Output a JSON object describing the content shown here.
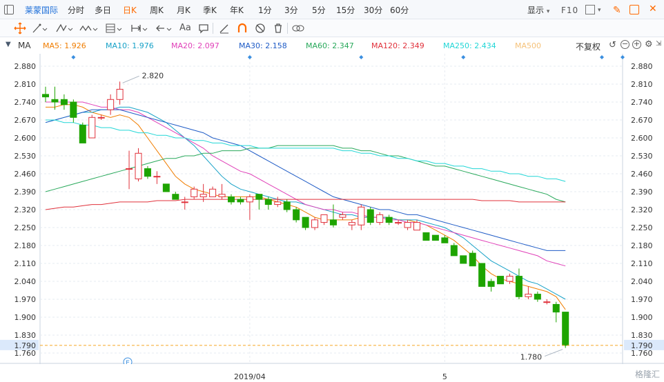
{
  "topbar": {
    "stock_name": "莱蒙国际",
    "periods": [
      "分时",
      "多日",
      "日K",
      "周K",
      "月K",
      "季K",
      "年K",
      "1分",
      "3分",
      "5分",
      "15分",
      "30分",
      "60分"
    ],
    "active_period": "日K",
    "display_label": "显示",
    "f10_label": "F10"
  },
  "indicator_bar": {
    "label": "MA",
    "fq_label": "不复权",
    "ma": [
      {
        "name": "MA5",
        "value": "1.926",
        "color": "#f07d00"
      },
      {
        "name": "MA10",
        "value": "1.976",
        "color": "#16a1c7"
      },
      {
        "name": "MA20",
        "value": "2.097",
        "color": "#e040b8"
      },
      {
        "name": "MA30",
        "value": "2.158",
        "color": "#1e5bc6"
      },
      {
        "name": "MA60",
        "value": "2.347",
        "color": "#27a85a"
      },
      {
        "name": "MA120",
        "value": "2.349",
        "color": "#e0303a"
      },
      {
        "name": "MA250",
        "value": "2.434",
        "color": "#20d6d6"
      },
      {
        "name": "MA500",
        "value": "",
        "color": "#f5c27a"
      }
    ]
  },
  "chart_data": {
    "type": "candlestick",
    "y_ticks": [
      "2.880",
      "2.810",
      "2.740",
      "2.670",
      "2.600",
      "2.530",
      "2.460",
      "2.390",
      "2.320",
      "2.250",
      "2.180",
      "2.110",
      "2.040",
      "1.970",
      "1.900",
      "1.830",
      "1.790",
      "1.760"
    ],
    "ylim": [
      1.76,
      2.88
    ],
    "x_labels": [
      {
        "text": "2019/04",
        "index": 22
      },
      {
        "text": "5",
        "index": 43
      }
    ],
    "annotations": {
      "high": "2.820",
      "low": "1.780",
      "current_price": "1.790"
    },
    "colors": {
      "up": "#e0303a",
      "down": "#1ea400",
      "current_line": "#f5a623"
    },
    "candles": [
      {
        "o": 2.77,
        "c": 2.76,
        "h": 2.8,
        "l": 2.74
      },
      {
        "o": 2.75,
        "c": 2.74,
        "h": 2.8,
        "l": 2.71
      },
      {
        "o": 2.75,
        "c": 2.73,
        "h": 2.77,
        "l": 2.71
      },
      {
        "o": 2.74,
        "c": 2.68,
        "h": 2.75,
        "l": 2.66
      },
      {
        "o": 2.65,
        "c": 2.58,
        "h": 2.66,
        "l": 2.58
      },
      {
        "o": 2.6,
        "c": 2.68,
        "h": 2.69,
        "l": 2.6
      },
      {
        "o": 2.68,
        "c": 2.68,
        "h": 2.69,
        "l": 2.67
      },
      {
        "o": 2.71,
        "c": 2.75,
        "h": 2.77,
        "l": 2.69
      },
      {
        "o": 2.75,
        "c": 2.79,
        "h": 2.82,
        "l": 2.73
      },
      {
        "o": 2.48,
        "c": 2.48,
        "h": 2.55,
        "l": 2.4
      },
      {
        "o": 2.44,
        "c": 2.54,
        "h": 2.56,
        "l": 2.43
      },
      {
        "o": 2.48,
        "c": 2.45,
        "h": 2.49,
        "l": 2.44
      },
      {
        "o": 2.45,
        "c": 2.45,
        "h": 2.47,
        "l": 2.42
      },
      {
        "o": 2.42,
        "c": 2.39,
        "h": 2.42,
        "l": 2.39
      },
      {
        "o": 2.38,
        "c": 2.36,
        "h": 2.39,
        "l": 2.36
      },
      {
        "o": 2.35,
        "c": 2.35,
        "h": 2.37,
        "l": 2.32
      },
      {
        "o": 2.37,
        "c": 2.4,
        "h": 2.41,
        "l": 2.36
      },
      {
        "o": 2.37,
        "c": 2.38,
        "h": 2.42,
        "l": 2.35
      },
      {
        "o": 2.37,
        "c": 2.4,
        "h": 2.41,
        "l": 2.37
      },
      {
        "o": 2.37,
        "c": 2.38,
        "h": 2.42,
        "l": 2.36
      },
      {
        "o": 2.37,
        "c": 2.35,
        "h": 2.38,
        "l": 2.34
      },
      {
        "o": 2.36,
        "c": 2.35,
        "h": 2.37,
        "l": 2.34
      },
      {
        "o": 2.35,
        "c": 2.37,
        "h": 2.38,
        "l": 2.28
      },
      {
        "o": 2.38,
        "c": 2.36,
        "h": 2.38,
        "l": 2.32
      },
      {
        "o": 2.36,
        "c": 2.34,
        "h": 2.37,
        "l": 2.32
      },
      {
        "o": 2.34,
        "c": 2.35,
        "h": 2.37,
        "l": 2.33
      },
      {
        "o": 2.35,
        "c": 2.32,
        "h": 2.36,
        "l": 2.31
      },
      {
        "o": 2.32,
        "c": 2.28,
        "h": 2.33,
        "l": 2.27
      },
      {
        "o": 2.29,
        "c": 2.25,
        "h": 2.29,
        "l": 2.24
      },
      {
        "o": 2.25,
        "c": 2.28,
        "h": 2.29,
        "l": 2.24
      },
      {
        "o": 2.27,
        "c": 2.3,
        "h": 2.3,
        "l": 2.26
      },
      {
        "o": 2.28,
        "c": 2.26,
        "h": 2.34,
        "l": 2.25
      },
      {
        "o": 2.29,
        "c": 2.3,
        "h": 2.31,
        "l": 2.28
      },
      {
        "o": 2.26,
        "c": 2.27,
        "h": 2.28,
        "l": 2.24
      },
      {
        "o": 2.26,
        "c": 2.33,
        "h": 2.34,
        "l": 2.24
      },
      {
        "o": 2.32,
        "c": 2.27,
        "h": 2.33,
        "l": 2.26
      },
      {
        "o": 2.27,
        "c": 2.3,
        "h": 2.31,
        "l": 2.26
      },
      {
        "o": 2.29,
        "c": 2.27,
        "h": 2.3,
        "l": 2.26
      },
      {
        "o": 2.27,
        "c": 2.27,
        "h": 2.28,
        "l": 2.26
      },
      {
        "o": 2.25,
        "c": 2.27,
        "h": 2.28,
        "l": 2.24
      },
      {
        "o": 2.24,
        "c": 2.27,
        "h": 2.28,
        "l": 2.24
      },
      {
        "o": 2.23,
        "c": 2.2,
        "h": 2.23,
        "l": 2.2
      },
      {
        "o": 2.22,
        "c": 2.2,
        "h": 2.22,
        "l": 2.2
      },
      {
        "o": 2.21,
        "c": 2.19,
        "h": 2.22,
        "l": 2.19
      },
      {
        "o": 2.18,
        "c": 2.14,
        "h": 2.19,
        "l": 2.14
      },
      {
        "o": 2.14,
        "c": 2.11,
        "h": 2.14,
        "l": 2.11
      },
      {
        "o": 2.15,
        "c": 2.1,
        "h": 2.16,
        "l": 2.1
      },
      {
        "o": 2.11,
        "c": 2.02,
        "h": 2.11,
        "l": 2.02
      },
      {
        "o": 2.04,
        "c": 2.02,
        "h": 2.05,
        "l": 2.0
      },
      {
        "o": 2.06,
        "c": 2.03,
        "h": 2.06,
        "l": 2.03
      },
      {
        "o": 2.04,
        "c": 2.06,
        "h": 2.07,
        "l": 2.03
      },
      {
        "o": 2.06,
        "c": 1.98,
        "h": 2.09,
        "l": 1.97
      },
      {
        "o": 1.98,
        "c": 1.99,
        "h": 2.02,
        "l": 1.97
      },
      {
        "o": 1.99,
        "c": 1.97,
        "h": 2.0,
        "l": 1.96
      },
      {
        "o": 1.96,
        "c": 1.96,
        "h": 1.97,
        "l": 1.95
      },
      {
        "o": 1.95,
        "c": 1.92,
        "h": 1.96,
        "l": 1.88
      },
      {
        "o": 1.92,
        "c": 1.79,
        "h": 1.92,
        "l": 1.78
      }
    ],
    "ma_lines": {
      "MA5": [
        2.72,
        2.72,
        2.73,
        2.73,
        2.72,
        2.7,
        2.69,
        2.68,
        2.69,
        2.68,
        2.65,
        2.6,
        2.55,
        2.5,
        2.45,
        2.42,
        2.4,
        2.39,
        2.38,
        2.37,
        2.37,
        2.37,
        2.37,
        2.37,
        2.36,
        2.35,
        2.34,
        2.33,
        2.31,
        2.29,
        2.28,
        2.28,
        2.28,
        2.28,
        2.29,
        2.29,
        2.29,
        2.29,
        2.28,
        2.28,
        2.27,
        2.26,
        2.24,
        2.22,
        2.2,
        2.17,
        2.14,
        2.1,
        2.07,
        2.05,
        2.04,
        2.03,
        2.02,
        2.01,
        2.0,
        1.98,
        1.93
      ],
      "MA10": [
        2.66,
        2.67,
        2.68,
        2.69,
        2.7,
        2.7,
        2.71,
        2.71,
        2.72,
        2.72,
        2.71,
        2.7,
        2.68,
        2.66,
        2.63,
        2.6,
        2.57,
        2.53,
        2.49,
        2.45,
        2.42,
        2.4,
        2.39,
        2.38,
        2.37,
        2.36,
        2.35,
        2.35,
        2.34,
        2.33,
        2.32,
        2.31,
        2.3,
        2.3,
        2.29,
        2.29,
        2.29,
        2.29,
        2.28,
        2.28,
        2.28,
        2.27,
        2.26,
        2.25,
        2.23,
        2.21,
        2.18,
        2.15,
        2.12,
        2.1,
        2.08,
        2.06,
        2.04,
        2.03,
        2.01,
        1.99,
        1.97
      ],
      "MA20": [
        2.74,
        2.74,
        2.74,
        2.74,
        2.74,
        2.73,
        2.72,
        2.72,
        2.71,
        2.71,
        2.7,
        2.68,
        2.66,
        2.64,
        2.62,
        2.6,
        2.58,
        2.56,
        2.53,
        2.51,
        2.49,
        2.47,
        2.46,
        2.44,
        2.42,
        2.4,
        2.38,
        2.36,
        2.34,
        2.33,
        2.32,
        2.32,
        2.31,
        2.31,
        2.3,
        2.29,
        2.29,
        2.28,
        2.28,
        2.27,
        2.27,
        2.26,
        2.25,
        2.24,
        2.23,
        2.22,
        2.21,
        2.2,
        2.19,
        2.18,
        2.17,
        2.16,
        2.15,
        2.14,
        2.12,
        2.11,
        2.1
      ],
      "MA30": [
        2.66,
        2.67,
        2.68,
        2.69,
        2.7,
        2.71,
        2.71,
        2.71,
        2.71,
        2.7,
        2.69,
        2.68,
        2.67,
        2.66,
        2.65,
        2.64,
        2.63,
        2.62,
        2.6,
        2.59,
        2.58,
        2.57,
        2.55,
        2.53,
        2.51,
        2.49,
        2.47,
        2.45,
        2.43,
        2.41,
        2.39,
        2.37,
        2.36,
        2.35,
        2.34,
        2.33,
        2.32,
        2.32,
        2.31,
        2.3,
        2.3,
        2.29,
        2.28,
        2.27,
        2.26,
        2.25,
        2.24,
        2.23,
        2.22,
        2.21,
        2.2,
        2.19,
        2.18,
        2.17,
        2.16,
        2.16,
        2.16
      ],
      "MA60": [
        2.39,
        2.4,
        2.41,
        2.42,
        2.43,
        2.44,
        2.45,
        2.46,
        2.47,
        2.48,
        2.49,
        2.5,
        2.51,
        2.52,
        2.52,
        2.53,
        2.53,
        2.54,
        2.54,
        2.55,
        2.55,
        2.55,
        2.56,
        2.56,
        2.56,
        2.57,
        2.57,
        2.57,
        2.57,
        2.57,
        2.57,
        2.57,
        2.56,
        2.56,
        2.55,
        2.55,
        2.54,
        2.53,
        2.53,
        2.52,
        2.51,
        2.5,
        2.49,
        2.49,
        2.48,
        2.47,
        2.46,
        2.45,
        2.44,
        2.43,
        2.42,
        2.41,
        2.4,
        2.39,
        2.38,
        2.36,
        2.35
      ],
      "MA120": [
        2.32,
        2.325,
        2.33,
        2.33,
        2.335,
        2.34,
        2.34,
        2.345,
        2.35,
        2.35,
        2.35,
        2.35,
        2.355,
        2.355,
        2.355,
        2.36,
        2.36,
        2.36,
        2.36,
        2.36,
        2.36,
        2.36,
        2.36,
        2.36,
        2.36,
        2.36,
        2.36,
        2.36,
        2.36,
        2.36,
        2.36,
        2.36,
        2.36,
        2.36,
        2.36,
        2.36,
        2.36,
        2.36,
        2.36,
        2.36,
        2.36,
        2.36,
        2.36,
        2.36,
        2.36,
        2.36,
        2.36,
        2.355,
        2.355,
        2.355,
        2.355,
        2.35,
        2.35,
        2.35,
        2.35,
        2.35,
        2.35
      ],
      "MA250": [
        2.67,
        2.67,
        2.66,
        2.66,
        2.65,
        2.65,
        2.64,
        2.64,
        2.63,
        2.63,
        2.62,
        2.62,
        2.61,
        2.61,
        2.6,
        2.6,
        2.59,
        2.59,
        2.58,
        2.58,
        2.57,
        2.57,
        2.57,
        2.56,
        2.56,
        2.56,
        2.56,
        2.56,
        2.56,
        2.56,
        2.56,
        2.56,
        2.55,
        2.55,
        2.54,
        2.54,
        2.53,
        2.53,
        2.52,
        2.52,
        2.51,
        2.51,
        2.5,
        2.5,
        2.49,
        2.49,
        2.48,
        2.48,
        2.47,
        2.47,
        2.46,
        2.46,
        2.45,
        2.45,
        2.44,
        2.44,
        2.43
      ]
    }
  },
  "watermark": "格隆汇"
}
